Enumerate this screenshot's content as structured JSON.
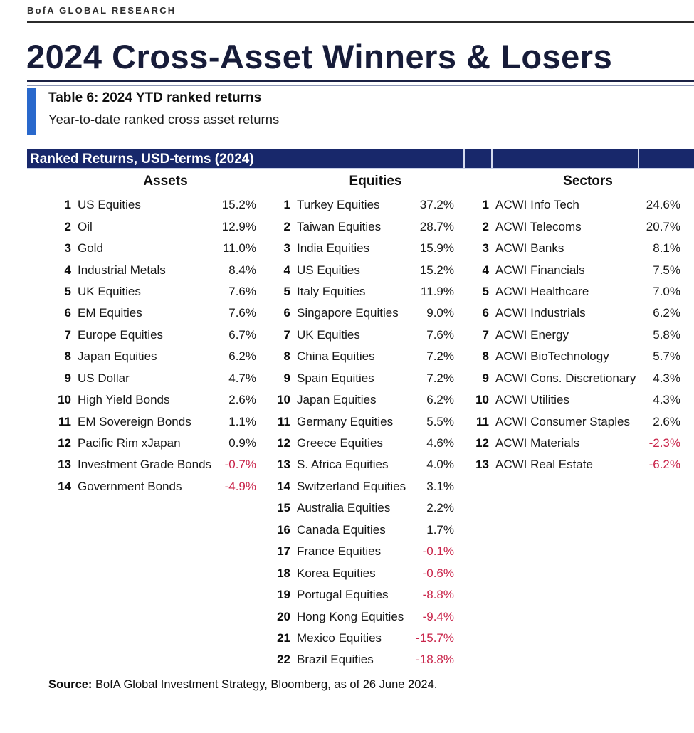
{
  "brand": "BofA GLOBAL RESEARCH",
  "page_title": "2024 Cross-Asset Winners & Losers",
  "caption": {
    "title": "Table 6: 2024 YTD ranked returns",
    "subtitle": "Year-to-date ranked cross asset returns"
  },
  "table": {
    "header_bar": "Ranked Returns, USD-terms (2024)",
    "columns": [
      {
        "label": "Assets",
        "rows": [
          {
            "rank": "1",
            "name": "US Equities",
            "value": "15.2%"
          },
          {
            "rank": "2",
            "name": "Oil",
            "value": "12.9%"
          },
          {
            "rank": "3",
            "name": "Gold",
            "value": "11.0%"
          },
          {
            "rank": "4",
            "name": "Industrial Metals",
            "value": "8.4%"
          },
          {
            "rank": "5",
            "name": "UK Equities",
            "value": "7.6%"
          },
          {
            "rank": "6",
            "name": "EM Equities",
            "value": "7.6%"
          },
          {
            "rank": "7",
            "name": "Europe Equities",
            "value": "6.7%"
          },
          {
            "rank": "8",
            "name": "Japan Equities",
            "value": "6.2%"
          },
          {
            "rank": "9",
            "name": "US Dollar",
            "value": "4.7%"
          },
          {
            "rank": "10",
            "name": "High Yield Bonds",
            "value": "2.6%"
          },
          {
            "rank": "11",
            "name": "EM Sovereign Bonds",
            "value": "1.1%"
          },
          {
            "rank": "12",
            "name": "Pacific Rim xJapan",
            "value": "0.9%"
          },
          {
            "rank": "13",
            "name": "Investment Grade Bonds",
            "value": "-0.7%"
          },
          {
            "rank": "14",
            "name": "Government Bonds",
            "value": "-4.9%"
          }
        ]
      },
      {
        "label": "Equities",
        "rows": [
          {
            "rank": "1",
            "name": "Turkey Equities",
            "value": "37.2%"
          },
          {
            "rank": "2",
            "name": "Taiwan Equities",
            "value": "28.7%"
          },
          {
            "rank": "3",
            "name": "India Equities",
            "value": "15.9%"
          },
          {
            "rank": "4",
            "name": "US Equities",
            "value": "15.2%"
          },
          {
            "rank": "5",
            "name": "Italy Equities",
            "value": "11.9%"
          },
          {
            "rank": "6",
            "name": "Singapore Equities",
            "value": "9.0%"
          },
          {
            "rank": "7",
            "name": "UK Equities",
            "value": "7.6%"
          },
          {
            "rank": "8",
            "name": "China Equities",
            "value": "7.2%"
          },
          {
            "rank": "9",
            "name": "Spain Equities",
            "value": "7.2%"
          },
          {
            "rank": "10",
            "name": "Japan Equities",
            "value": "6.2%"
          },
          {
            "rank": "11",
            "name": "Germany Equities",
            "value": "5.5%"
          },
          {
            "rank": "12",
            "name": "Greece Equities",
            "value": "4.6%"
          },
          {
            "rank": "13",
            "name": "S. Africa Equities",
            "value": "4.0%"
          },
          {
            "rank": "14",
            "name": "Switzerland Equities",
            "value": "3.1%"
          },
          {
            "rank": "15",
            "name": "Australia Equities",
            "value": "2.2%"
          },
          {
            "rank": "16",
            "name": "Canada Equities",
            "value": "1.7%"
          },
          {
            "rank": "17",
            "name": "France Equities",
            "value": "-0.1%"
          },
          {
            "rank": "18",
            "name": "Korea Equities",
            "value": "-0.6%"
          },
          {
            "rank": "19",
            "name": "Portugal Equities",
            "value": "-8.8%"
          },
          {
            "rank": "20",
            "name": "Hong Kong Equities",
            "value": "-9.4%"
          },
          {
            "rank": "21",
            "name": "Mexico Equities",
            "value": "-15.7%"
          },
          {
            "rank": "22",
            "name": "Brazil Equities",
            "value": "-18.8%"
          }
        ]
      },
      {
        "label": "Sectors",
        "rows": [
          {
            "rank": "1",
            "name": "ACWI Info Tech",
            "value": "24.6%"
          },
          {
            "rank": "2",
            "name": "ACWI Telecoms",
            "value": "20.7%"
          },
          {
            "rank": "3",
            "name": "ACWI Banks",
            "value": "8.1%"
          },
          {
            "rank": "4",
            "name": "ACWI Financials",
            "value": "7.5%"
          },
          {
            "rank": "5",
            "name": "ACWI Healthcare",
            "value": "7.0%"
          },
          {
            "rank": "6",
            "name": "ACWI Industrials",
            "value": "6.2%"
          },
          {
            "rank": "7",
            "name": "ACWI Energy",
            "value": "5.8%"
          },
          {
            "rank": "8",
            "name": "ACWI BioTechnology",
            "value": "5.7%"
          },
          {
            "rank": "9",
            "name": "ACWI Cons. Discretionary",
            "value": "4.3%"
          },
          {
            "rank": "10",
            "name": "ACWI Utilities",
            "value": "4.3%"
          },
          {
            "rank": "11",
            "name": "ACWI Consumer Staples",
            "value": "2.6%"
          },
          {
            "rank": "12",
            "name": "ACWI Materials",
            "value": "-2.3%"
          },
          {
            "rank": "13",
            "name": "ACWI Real Estate",
            "value": "-6.2%"
          }
        ]
      }
    ]
  },
  "source": {
    "label": "Source:",
    "text": " BofA Global Investment Strategy, Bloomberg, as of 26 June 2024."
  },
  "colors": {
    "navy_bar": "#18286b",
    "title_navy": "#171c39",
    "accent_blue": "#2968cc",
    "negative_red": "#c9244a"
  }
}
